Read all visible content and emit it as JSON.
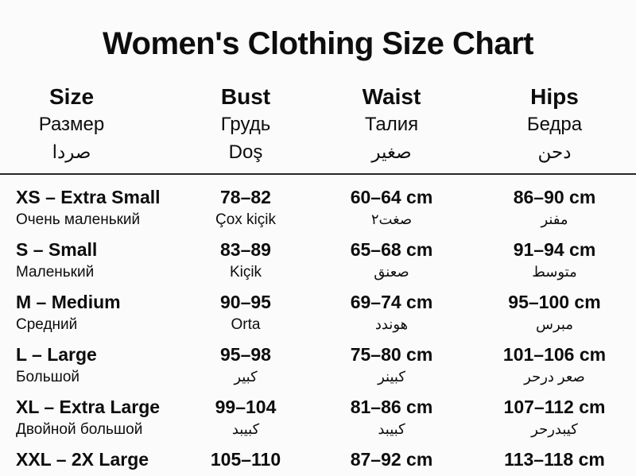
{
  "title": "Women's Clothing Size Chart",
  "header": {
    "size": {
      "en": "Size",
      "ru": "Размер",
      "ar": "صردا"
    },
    "bust": {
      "en": "Bust",
      "ru": "Грудь",
      "az": "Doş"
    },
    "waist": {
      "en": "Waist",
      "ru": "Талия",
      "ar": "صغير"
    },
    "hips": {
      "en": "Hips",
      "ru": "Бедра",
      "ar": "دحن"
    }
  },
  "rows": [
    {
      "size": "XS – Extra Small",
      "size_sub": "Очень маленький",
      "bust": "78–82",
      "bust_sub": "Çox kiçik",
      "waist": "60–64 cm",
      "waist_sub": "صغت٢",
      "hips": "86–90 cm",
      "hips_sub": "مفنر"
    },
    {
      "size": "S – Small",
      "size_sub": "Маленький",
      "bust": "83–89",
      "bust_sub": "Kiçik",
      "waist": "65–68 cm",
      "waist_sub": "صعنق",
      "hips": "91–94 cm",
      "hips_sub": "متوسط"
    },
    {
      "size": "M – Medium",
      "size_sub": "Средний",
      "bust": "90–95",
      "bust_sub": "Orta",
      "waist": "69–74 cm",
      "waist_sub": "هوندد",
      "hips": "95–100 cm",
      "hips_sub": "مبرس"
    },
    {
      "size": "L – Large",
      "size_sub": "Большой",
      "bust": "95–98",
      "bust_sub": "كبير",
      "waist": "75–80 cm",
      "waist_sub": "كبينر",
      "hips": "101–106 cm",
      "hips_sub": "صعر درحر"
    },
    {
      "size": "XL – Extra Large",
      "size_sub": "Двойной большой",
      "bust": "99–104",
      "bust_sub": "كبيبد",
      "waist": "81–86 cm",
      "waist_sub": "كبيبد",
      "hips": "107–112 cm",
      "hips_sub": "كيبدرحر"
    },
    {
      "size": "XXL – 2X Large",
      "bust": "105–110",
      "waist": "87–92 cm",
      "hips": "113–118 cm"
    }
  ],
  "colors": {
    "background": "#fbfbfb",
    "text": "#0d0d0d",
    "divider": "#262626"
  }
}
